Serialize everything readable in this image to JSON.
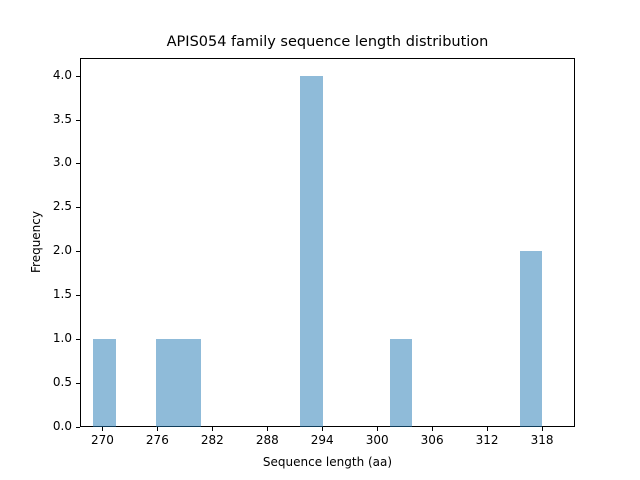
{
  "chart_data": {
    "type": "bar",
    "title": "APIS054 family sequence length distribution",
    "xlabel": "Sequence length (aa)",
    "ylabel": "Frequency",
    "xlim": [
      267.55,
      321.6
    ],
    "ylim": [
      0,
      4.2
    ],
    "grid": false,
    "legend": null,
    "x_ticks": [
      270,
      276,
      282,
      288,
      294,
      300,
      306,
      312,
      318
    ],
    "y_ticks": [
      0.0,
      0.5,
      1.0,
      1.5,
      2.0,
      2.5,
      3.0,
      3.5,
      4.0
    ],
    "bin_width": 2.45,
    "bins": [
      {
        "start": 269.0,
        "end": 271.45,
        "count": 1
      },
      {
        "start": 275.9,
        "end": 278.35,
        "count": 1
      },
      {
        "start": 278.35,
        "end": 280.8,
        "count": 1
      },
      {
        "start": 291.6,
        "end": 294.05,
        "count": 4
      },
      {
        "start": 301.4,
        "end": 303.85,
        "count": 1
      },
      {
        "start": 315.55,
        "end": 318.0,
        "count": 2
      }
    ],
    "bar_color": "#1f77b4",
    "bar_alpha": 0.5
  },
  "labels": {
    "title": "APIS054 family sequence length distribution",
    "xlabel": "Sequence length (aa)",
    "ylabel": "Frequency",
    "x_ticks": [
      "270",
      "276",
      "282",
      "288",
      "294",
      "300",
      "306",
      "312",
      "318"
    ],
    "y_ticks": [
      "0.0",
      "0.5",
      "1.0",
      "1.5",
      "2.0",
      "2.5",
      "3.0",
      "3.5",
      "4.0"
    ]
  }
}
